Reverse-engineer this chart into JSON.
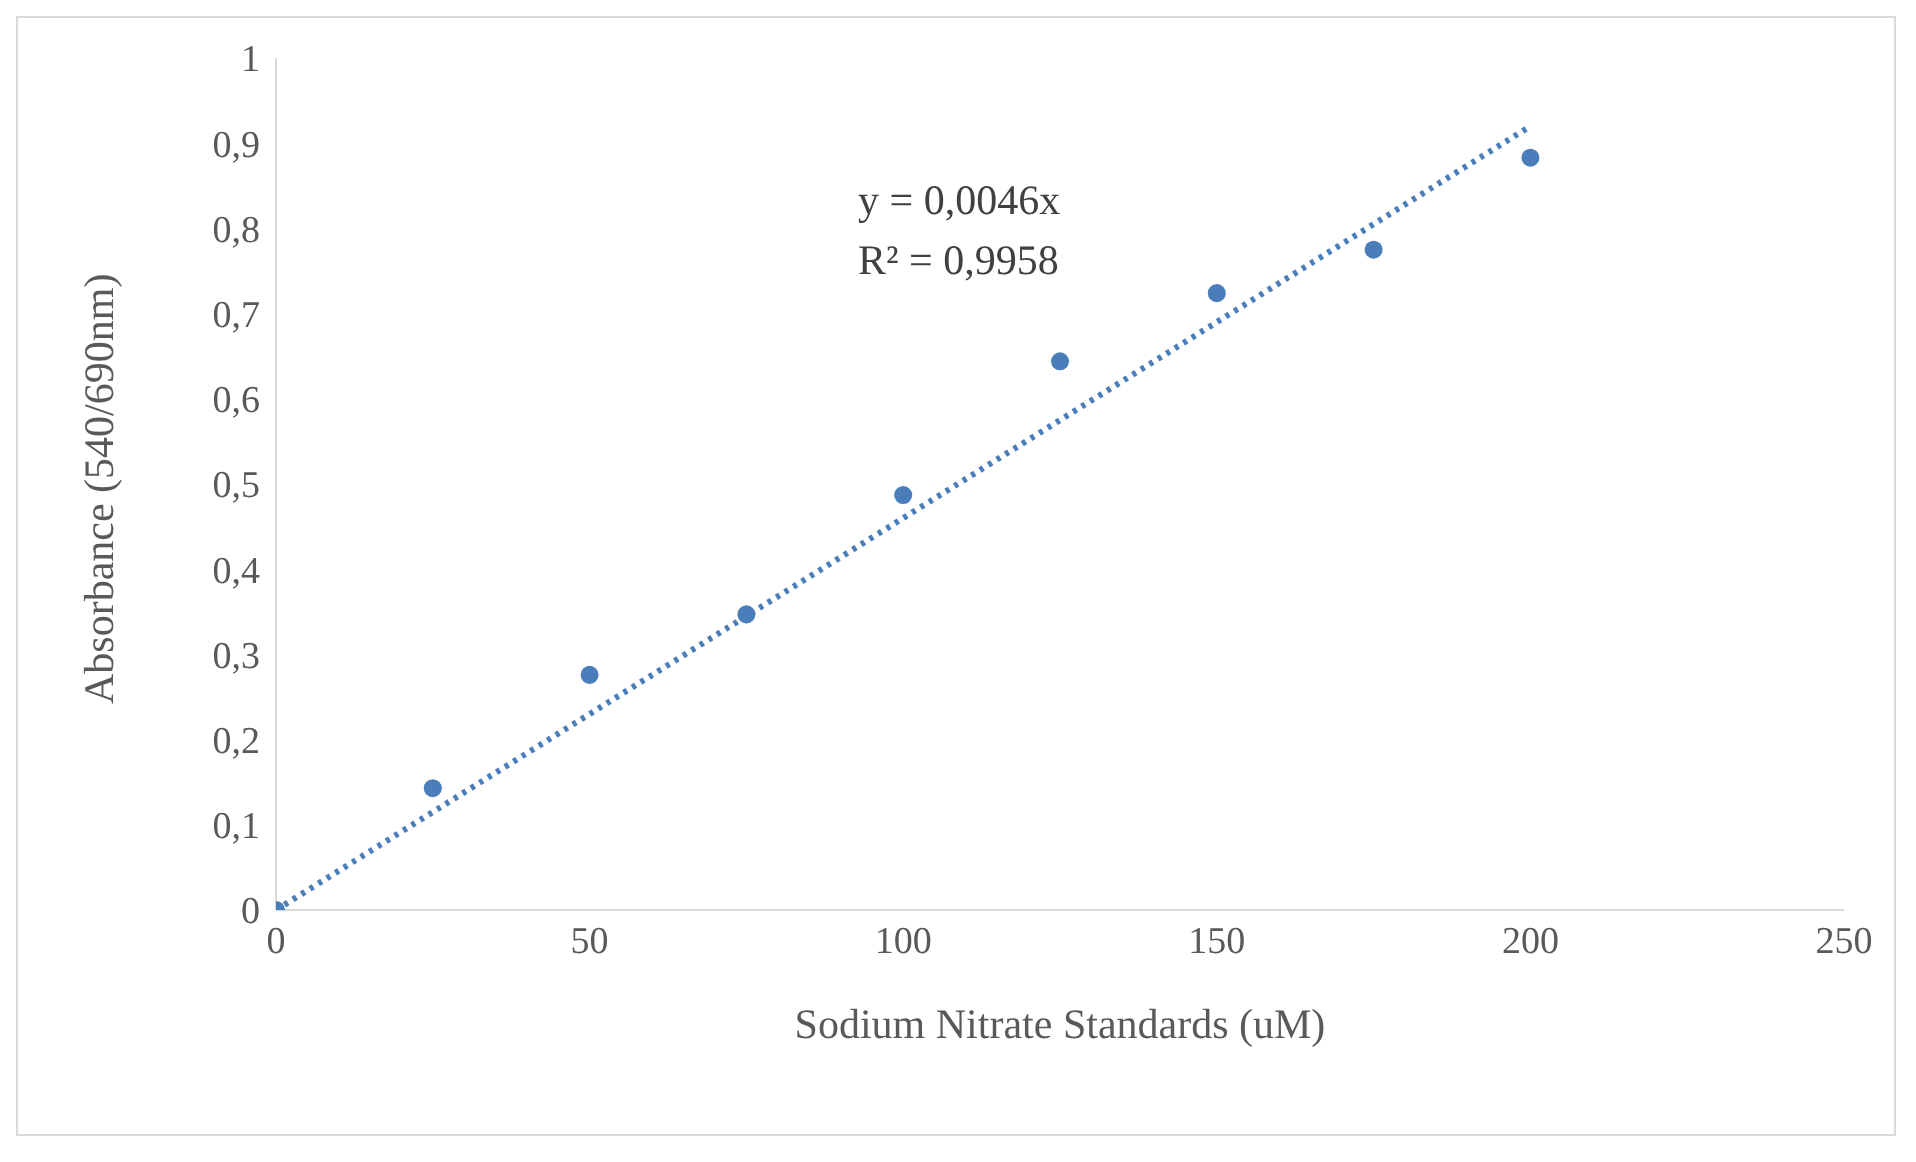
{
  "chart_data": {
    "type": "scatter",
    "xlabel": "Sodium Nitrate Standards (uM)",
    "ylabel": "Absorbance (540/690nm)",
    "x": [
      0,
      25,
      50,
      75,
      100,
      125,
      150,
      175,
      200
    ],
    "series": [
      {
        "color": "#4a7ebb",
        "values": [
          0,
          0.143,
          0.276,
          0.347,
          0.487,
          0.644,
          0.724,
          0.775,
          0.883
        ]
      },
      {
        "type": "line",
        "color": "#4a7ebb",
        "x": [
          0,
          200
        ],
        "values": [
          0,
          0.92
        ],
        "line_style": "dotted",
        "marker": "none"
      }
    ],
    "xlim": [
      0,
      250
    ],
    "xticks": [
      0,
      50,
      100,
      150,
      200,
      250
    ],
    "ylim": [
      0,
      1
    ],
    "yticks": [
      0,
      {
        "value": 0.1,
        "label": "0,1"
      },
      {
        "value": 0.2,
        "label": "0,2"
      },
      {
        "value": 0.3,
        "label": "0,3"
      },
      {
        "value": 0.4,
        "label": "0,4"
      },
      {
        "value": 0.5,
        "label": "0,5"
      },
      {
        "value": 0.6,
        "label": "0,6"
      },
      {
        "value": 0.7,
        "label": "0,7"
      },
      {
        "value": 0.8,
        "label": "0,8"
      },
      {
        "value": 0.9,
        "label": "0,9"
      },
      1
    ],
    "annotations": [
      "y = 0,0046x",
      "R² = 0,9958"
    ],
    "grid": false,
    "legend": false,
    "marker": "circle"
  }
}
